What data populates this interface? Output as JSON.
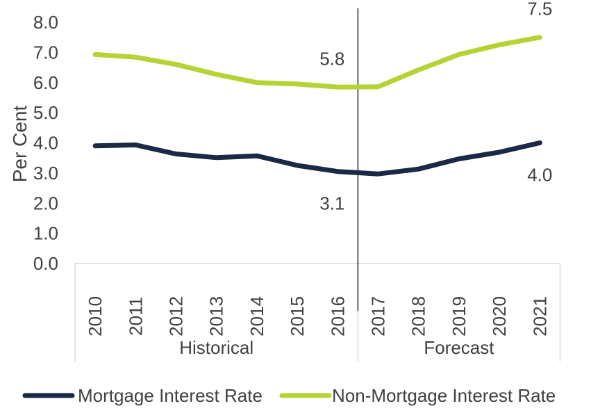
{
  "chart_data": {
    "type": "line",
    "ylabel": "Per Cent",
    "ylim": [
      0,
      8
    ],
    "yticks": [
      "0.0",
      "1.0",
      "2.0",
      "3.0",
      "4.0",
      "5.0",
      "6.0",
      "7.0",
      "8.0"
    ],
    "categories": [
      "2010",
      "2011",
      "2012",
      "2013",
      "2014",
      "2015",
      "2016",
      "2017",
      "2018",
      "2019",
      "2020",
      "2021"
    ],
    "groups": [
      {
        "label": "Historical",
        "span": [
          "2010",
          "2016"
        ]
      },
      {
        "label": "Forecast",
        "span": [
          "2017",
          "2021"
        ]
      }
    ],
    "divider_between": [
      "2016",
      "2017"
    ],
    "series": [
      {
        "name": "Mortgage Interest Rate",
        "color": "#1b2a44",
        "values": [
          3.9,
          3.93,
          3.63,
          3.51,
          3.57,
          3.25,
          3.05,
          2.97,
          3.13,
          3.47,
          3.69,
          4.0
        ]
      },
      {
        "name": "Non-Mortgage Interest Rate",
        "color": "#b5d334",
        "values": [
          6.93,
          6.84,
          6.6,
          6.27,
          6.0,
          5.95,
          5.85,
          5.86,
          6.42,
          6.93,
          7.25,
          7.5
        ]
      }
    ],
    "annotations": [
      {
        "text": "5.8",
        "series": 1,
        "index": 6
      },
      {
        "text": "3.1",
        "series": 0,
        "index": 6
      },
      {
        "text": "7.5",
        "series": 1,
        "index": 11
      },
      {
        "text": "4.0",
        "series": 0,
        "index": 11
      }
    ],
    "legend": "bottom"
  }
}
